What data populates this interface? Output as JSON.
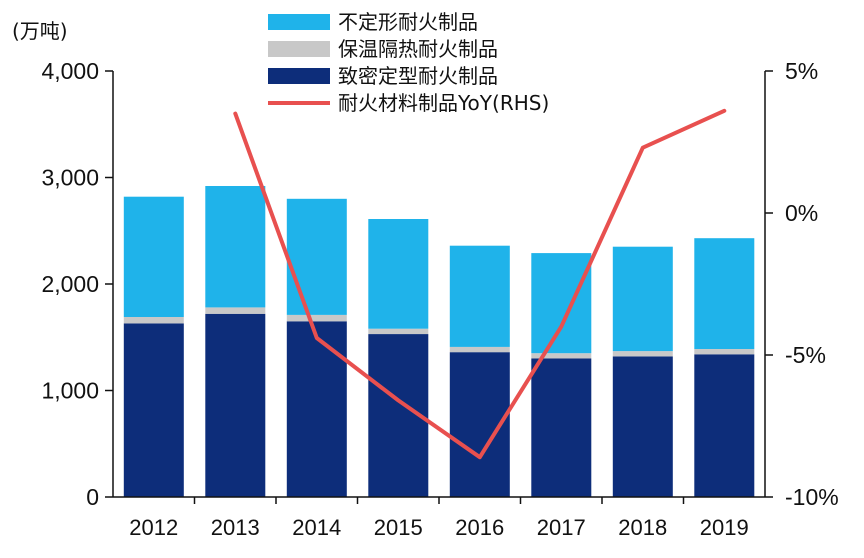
{
  "colors": {
    "amorphous": "#1fb3ea",
    "insulating": "#c8c8c8",
    "dense": "#0d2d7a",
    "yoy": "#e8504f",
    "axis": "#111111"
  },
  "chart_data": {
    "type": "bar",
    "title": "",
    "xlabel": "",
    "ylabel": "(万吨)",
    "categories": [
      "2012",
      "2013",
      "2014",
      "2015",
      "2016",
      "2017",
      "2018",
      "2019"
    ],
    "ylim": [
      0,
      4000
    ],
    "y_ticks": [
      "0",
      "1,000",
      "2,000",
      "3,000",
      "4,000"
    ],
    "y2lim": [
      -10,
      5
    ],
    "y2_ticks": [
      "-10%",
      "-5%",
      "0%",
      "5%"
    ],
    "grid": false,
    "legend_position": "top-center",
    "stacked": true,
    "series": [
      {
        "name": "致密定型耐火制品",
        "key": "dense",
        "values": [
          1630,
          1720,
          1650,
          1530,
          1360,
          1300,
          1320,
          1340
        ]
      },
      {
        "name": "保温隔热耐火制品",
        "key": "insulating",
        "values": [
          60,
          60,
          60,
          50,
          50,
          50,
          50,
          50
        ]
      },
      {
        "name": "不定形耐火制品",
        "key": "amorphous",
        "values": [
          1130,
          1140,
          1090,
          1030,
          950,
          940,
          980,
          1040
        ]
      }
    ],
    "line_series": {
      "name": "耐火材料制品YoY(RHS)",
      "axis": "right",
      "values": [
        null,
        3.5,
        -4.4,
        -6.6,
        -8.6,
        -4.0,
        2.3,
        3.6
      ]
    },
    "legend": [
      {
        "label": "不定形耐火制品",
        "key": "amorphous",
        "kind": "swatch"
      },
      {
        "label": "保温隔热耐火制品",
        "key": "insulating",
        "kind": "swatch"
      },
      {
        "label": "致密定型耐火制品",
        "key": "dense",
        "kind": "swatch"
      },
      {
        "label": "耐火材料制品YoY(RHS)",
        "key": "yoy",
        "kind": "line"
      }
    ]
  }
}
